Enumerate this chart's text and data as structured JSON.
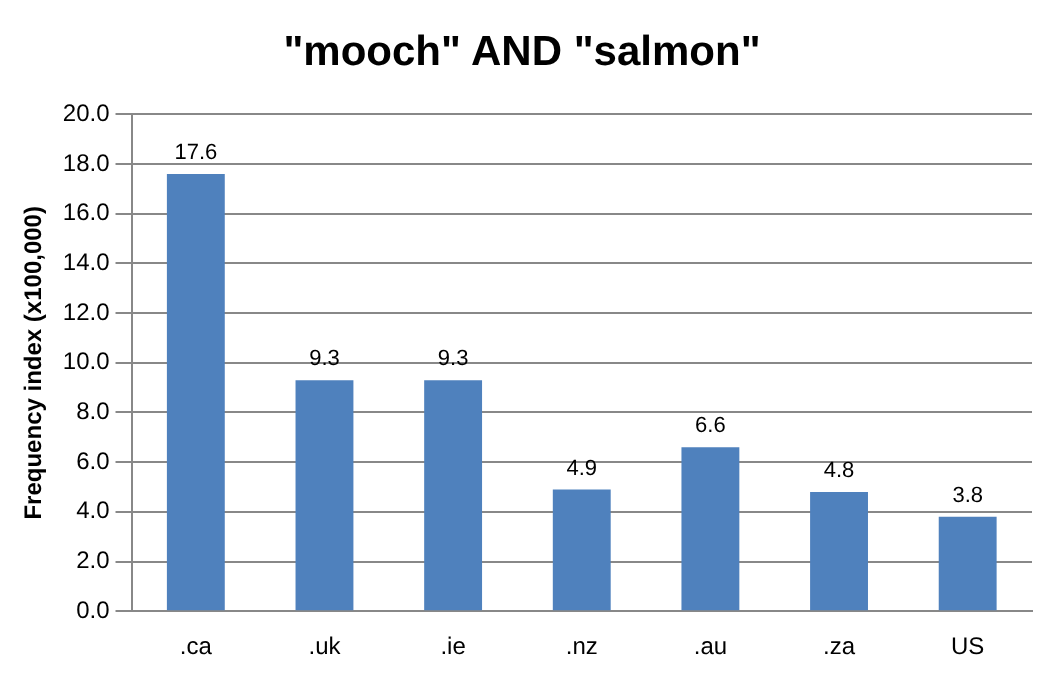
{
  "chart_data": {
    "type": "bar",
    "title": "\"mooch\" AND \"salmon\"",
    "ylabel": "Frequency index (x100,000)",
    "categories": [
      ".ca",
      ".uk",
      ".ie",
      ".nz",
      ".au",
      ".za",
      "US"
    ],
    "values": [
      17.6,
      9.3,
      9.3,
      4.9,
      6.6,
      4.8,
      3.8
    ],
    "color": "#4f81bd",
    "ylim": [
      0,
      20
    ],
    "yticks": [
      {
        "value": 0,
        "label": "0.0"
      },
      {
        "value": 2,
        "label": "2.0"
      },
      {
        "value": 4,
        "label": "4.0"
      },
      {
        "value": 6,
        "label": "6.0"
      },
      {
        "value": 8,
        "label": "8.0"
      },
      {
        "value": 10,
        "label": "10.0"
      },
      {
        "value": 12,
        "label": "12.0"
      },
      {
        "value": 14,
        "label": "14.0"
      },
      {
        "value": 16,
        "label": "16.0"
      },
      {
        "value": 18,
        "label": "18.0"
      },
      {
        "value": 20,
        "label": "20.0"
      }
    ],
    "grid": "y",
    "data_labels": true,
    "legend": false
  }
}
